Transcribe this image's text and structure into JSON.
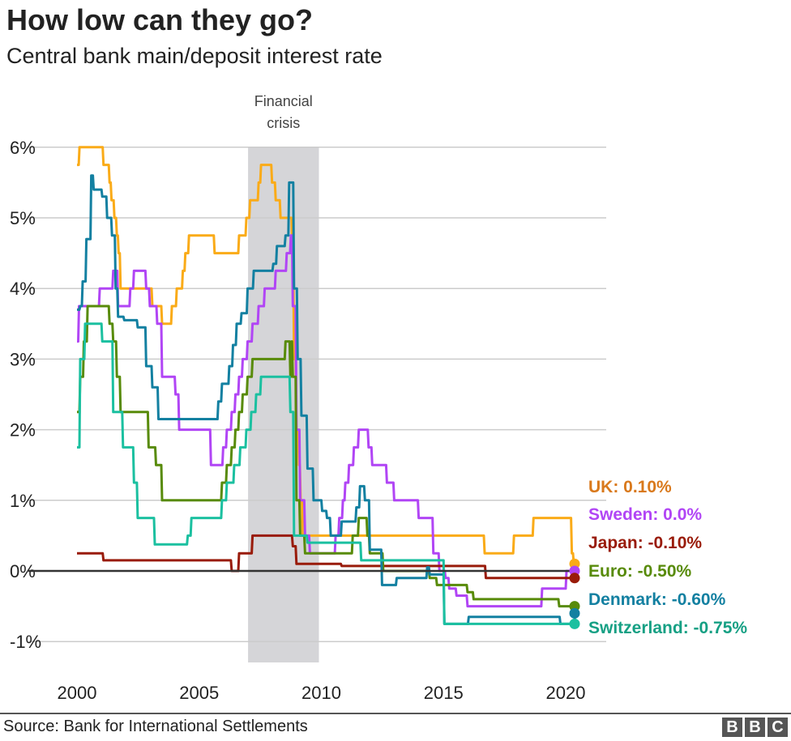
{
  "header": {
    "title": "How low can they go?",
    "subtitle": "Central bank main/deposit interest rate"
  },
  "footer": {
    "source": "Source: Bank for International Settlements",
    "logo": "BBC"
  },
  "chart_data": {
    "type": "line",
    "title": "How low can they go?",
    "subtitle": "Central bank main/deposit interest rate",
    "xlabel": "",
    "ylabel": "",
    "xlim": [
      2000,
      2020.4
    ],
    "ylim": [
      -1,
      6
    ],
    "x_ticks": [
      "2000",
      "2005",
      "2010",
      "2015",
      "2020"
    ],
    "y_ticks": [
      "6%",
      "5%",
      "4%",
      "3%",
      "2%",
      "1%",
      "0%",
      "-1%"
    ],
    "grid": true,
    "annotations": [
      {
        "label": "Financial crisis",
        "x_start": 2007.0,
        "x_end": 2009.9,
        "color": "#d5d5d8"
      }
    ],
    "legend": "right, direct labels at series ends",
    "series": [
      {
        "name": "UK",
        "label": "UK: 0.10%",
        "color": "#faab18",
        "label_color": "#d9791c",
        "values": [
          [
            2000.0,
            5.75
          ],
          [
            2000.07,
            6.0
          ],
          [
            2001.05,
            5.75
          ],
          [
            2001.3,
            5.5
          ],
          [
            2001.38,
            5.25
          ],
          [
            2001.5,
            5.0
          ],
          [
            2001.6,
            4.75
          ],
          [
            2001.67,
            4.5
          ],
          [
            2001.75,
            4.0
          ],
          [
            2003.05,
            3.75
          ],
          [
            2003.45,
            3.5
          ],
          [
            2003.85,
            3.75
          ],
          [
            2004.05,
            4.0
          ],
          [
            2004.3,
            4.25
          ],
          [
            2004.4,
            4.5
          ],
          [
            2004.55,
            4.75
          ],
          [
            2005.6,
            4.5
          ],
          [
            2006.6,
            4.75
          ],
          [
            2006.9,
            5.0
          ],
          [
            2007.05,
            5.25
          ],
          [
            2007.4,
            5.5
          ],
          [
            2007.5,
            5.75
          ],
          [
            2007.95,
            5.5
          ],
          [
            2008.1,
            5.25
          ],
          [
            2008.3,
            5.0
          ],
          [
            2008.78,
            4.5
          ],
          [
            2008.85,
            3.0
          ],
          [
            2008.95,
            2.0
          ],
          [
            2009.05,
            1.5
          ],
          [
            2009.12,
            1.0
          ],
          [
            2009.2,
            0.5
          ],
          [
            2016.65,
            0.25
          ],
          [
            2017.85,
            0.5
          ],
          [
            2018.65,
            0.75
          ],
          [
            2020.22,
            0.25
          ],
          [
            2020.3,
            0.1
          ],
          [
            2020.4,
            0.1
          ]
        ]
      },
      {
        "name": "Sweden",
        "label": "Sweden: 0.0%",
        "color": "#b145f5",
        "label_color": "#b145f5",
        "values": [
          [
            2000.0,
            3.25
          ],
          [
            2000.05,
            3.75
          ],
          [
            2000.9,
            4.0
          ],
          [
            2001.45,
            4.25
          ],
          [
            2001.65,
            3.75
          ],
          [
            2002.15,
            4.0
          ],
          [
            2002.3,
            4.25
          ],
          [
            2002.8,
            4.0
          ],
          [
            2002.95,
            3.75
          ],
          [
            2003.25,
            3.5
          ],
          [
            2003.45,
            2.75
          ],
          [
            2004.0,
            2.5
          ],
          [
            2004.15,
            2.0
          ],
          [
            2005.45,
            1.5
          ],
          [
            2005.95,
            1.75
          ],
          [
            2006.1,
            2.0
          ],
          [
            2006.3,
            2.25
          ],
          [
            2006.45,
            2.5
          ],
          [
            2006.6,
            2.75
          ],
          [
            2006.75,
            3.0
          ],
          [
            2006.95,
            3.25
          ],
          [
            2007.15,
            3.5
          ],
          [
            2007.4,
            3.75
          ],
          [
            2007.65,
            4.0
          ],
          [
            2008.1,
            4.25
          ],
          [
            2008.55,
            4.5
          ],
          [
            2008.72,
            4.75
          ],
          [
            2008.8,
            3.75
          ],
          [
            2008.95,
            2.0
          ],
          [
            2009.1,
            1.0
          ],
          [
            2009.3,
            0.5
          ],
          [
            2009.5,
            0.25
          ],
          [
            2010.55,
            0.5
          ],
          [
            2010.7,
            0.75
          ],
          [
            2010.85,
            1.0
          ],
          [
            2010.95,
            1.25
          ],
          [
            2011.1,
            1.5
          ],
          [
            2011.3,
            1.75
          ],
          [
            2011.5,
            2.0
          ],
          [
            2011.9,
            1.75
          ],
          [
            2012.05,
            1.5
          ],
          [
            2012.65,
            1.25
          ],
          [
            2012.95,
            1.0
          ],
          [
            2013.95,
            0.75
          ],
          [
            2014.55,
            0.25
          ],
          [
            2014.8,
            0.0
          ],
          [
            2015.05,
            -0.1
          ],
          [
            2015.2,
            -0.25
          ],
          [
            2015.5,
            -0.35
          ],
          [
            2015.95,
            -0.5
          ],
          [
            2019.0,
            -0.25
          ],
          [
            2020.0,
            0.0
          ],
          [
            2020.4,
            0.0
          ]
        ]
      },
      {
        "name": "Japan",
        "label": "Japan: -0.10%",
        "color": "#991b0a",
        "label_color": "#991b0a",
        "values": [
          [
            2000.0,
            0.25
          ],
          [
            2001.05,
            0.15
          ],
          [
            2006.3,
            0.0
          ],
          [
            2006.6,
            0.25
          ],
          [
            2007.15,
            0.5
          ],
          [
            2008.8,
            0.35
          ],
          [
            2008.95,
            0.1
          ],
          [
            2010.8,
            0.07
          ],
          [
            2016.7,
            -0.1
          ],
          [
            2020.4,
            -0.1
          ]
        ]
      },
      {
        "name": "Euro",
        "label": "Euro: -0.50%",
        "color": "#588b0a",
        "label_color": "#588b0a",
        "values": [
          [
            2000.0,
            2.25
          ],
          [
            2000.1,
            2.75
          ],
          [
            2000.25,
            3.25
          ],
          [
            2000.4,
            3.75
          ],
          [
            2001.3,
            3.5
          ],
          [
            2001.45,
            3.25
          ],
          [
            2001.6,
            2.75
          ],
          [
            2001.75,
            2.25
          ],
          [
            2002.9,
            1.75
          ],
          [
            2003.2,
            1.5
          ],
          [
            2003.45,
            1.0
          ],
          [
            2005.9,
            1.25
          ],
          [
            2006.1,
            1.5
          ],
          [
            2006.3,
            1.75
          ],
          [
            2006.45,
            2.0
          ],
          [
            2006.6,
            2.25
          ],
          [
            2006.75,
            2.5
          ],
          [
            2006.95,
            2.75
          ],
          [
            2007.15,
            3.0
          ],
          [
            2008.5,
            3.25
          ],
          [
            2008.7,
            2.75
          ],
          [
            2008.75,
            3.25
          ],
          [
            2008.8,
            2.75
          ],
          [
            2008.95,
            1.0
          ],
          [
            2009.1,
            0.5
          ],
          [
            2009.3,
            0.25
          ],
          [
            2011.25,
            0.5
          ],
          [
            2011.5,
            0.75
          ],
          [
            2011.85,
            0.5
          ],
          [
            2011.95,
            0.25
          ],
          [
            2012.5,
            0.0
          ],
          [
            2014.4,
            -0.1
          ],
          [
            2014.7,
            -0.2
          ],
          [
            2015.95,
            -0.3
          ],
          [
            2016.2,
            -0.4
          ],
          [
            2019.7,
            -0.5
          ],
          [
            2020.4,
            -0.5
          ]
        ]
      },
      {
        "name": "Denmark",
        "label": "Denmark: -0.60%",
        "color": "#1380a1",
        "label_color": "#1380a1",
        "values": [
          [
            2000.0,
            3.7
          ],
          [
            2000.1,
            3.75
          ],
          [
            2000.2,
            4.1
          ],
          [
            2000.35,
            4.7
          ],
          [
            2000.55,
            5.6
          ],
          [
            2000.65,
            5.4
          ],
          [
            2001.0,
            5.3
          ],
          [
            2001.2,
            5.0
          ],
          [
            2001.4,
            4.75
          ],
          [
            2001.55,
            4.0
          ],
          [
            2001.65,
            3.6
          ],
          [
            2001.9,
            3.55
          ],
          [
            2002.45,
            3.45
          ],
          [
            2002.8,
            2.9
          ],
          [
            2003.05,
            2.6
          ],
          [
            2003.3,
            2.15
          ],
          [
            2005.75,
            2.4
          ],
          [
            2005.9,
            2.65
          ],
          [
            2006.2,
            2.9
          ],
          [
            2006.35,
            3.2
          ],
          [
            2006.5,
            3.5
          ],
          [
            2006.7,
            3.65
          ],
          [
            2006.95,
            4.0
          ],
          [
            2007.2,
            4.25
          ],
          [
            2008.0,
            4.35
          ],
          [
            2008.15,
            4.6
          ],
          [
            2008.5,
            4.75
          ],
          [
            2008.65,
            5.5
          ],
          [
            2008.85,
            4.0
          ],
          [
            2009.0,
            3.0
          ],
          [
            2009.15,
            2.2
          ],
          [
            2009.4,
            1.45
          ],
          [
            2009.65,
            1.0
          ],
          [
            2010.0,
            0.85
          ],
          [
            2010.2,
            0.75
          ],
          [
            2010.35,
            0.5
          ],
          [
            2010.8,
            0.7
          ],
          [
            2011.4,
            0.9
          ],
          [
            2011.55,
            1.2
          ],
          [
            2011.75,
            1.0
          ],
          [
            2011.95,
            0.3
          ],
          [
            2012.45,
            -0.2
          ],
          [
            2013.05,
            -0.1
          ],
          [
            2014.3,
            0.05
          ],
          [
            2014.4,
            -0.05
          ],
          [
            2015.0,
            -0.75
          ],
          [
            2016.0,
            -0.65
          ],
          [
            2019.75,
            -0.75
          ],
          [
            2020.35,
            -0.6
          ]
        ]
      },
      {
        "name": "Switzerland",
        "label": "Switzerland: -0.75%",
        "color": "#1bc0a0",
        "label_color": "#16a084",
        "values": [
          [
            2000.0,
            1.75
          ],
          [
            2000.1,
            3.0
          ],
          [
            2000.3,
            3.5
          ],
          [
            2001.0,
            3.25
          ],
          [
            2001.45,
            2.25
          ],
          [
            2001.85,
            1.75
          ],
          [
            2002.3,
            1.25
          ],
          [
            2002.45,
            0.75
          ],
          [
            2003.15,
            0.375
          ],
          [
            2004.5,
            0.5
          ],
          [
            2004.65,
            0.75
          ],
          [
            2005.9,
            1.0
          ],
          [
            2006.1,
            1.25
          ],
          [
            2006.4,
            1.5
          ],
          [
            2006.65,
            1.75
          ],
          [
            2006.9,
            2.0
          ],
          [
            2007.1,
            2.25
          ],
          [
            2007.3,
            2.5
          ],
          [
            2007.5,
            2.75
          ],
          [
            2008.7,
            2.25
          ],
          [
            2008.85,
            0.5
          ],
          [
            2009.4,
            0.4
          ],
          [
            2011.6,
            0.15
          ],
          [
            2015.0,
            -0.75
          ],
          [
            2020.4,
            -0.75
          ]
        ]
      }
    ]
  }
}
